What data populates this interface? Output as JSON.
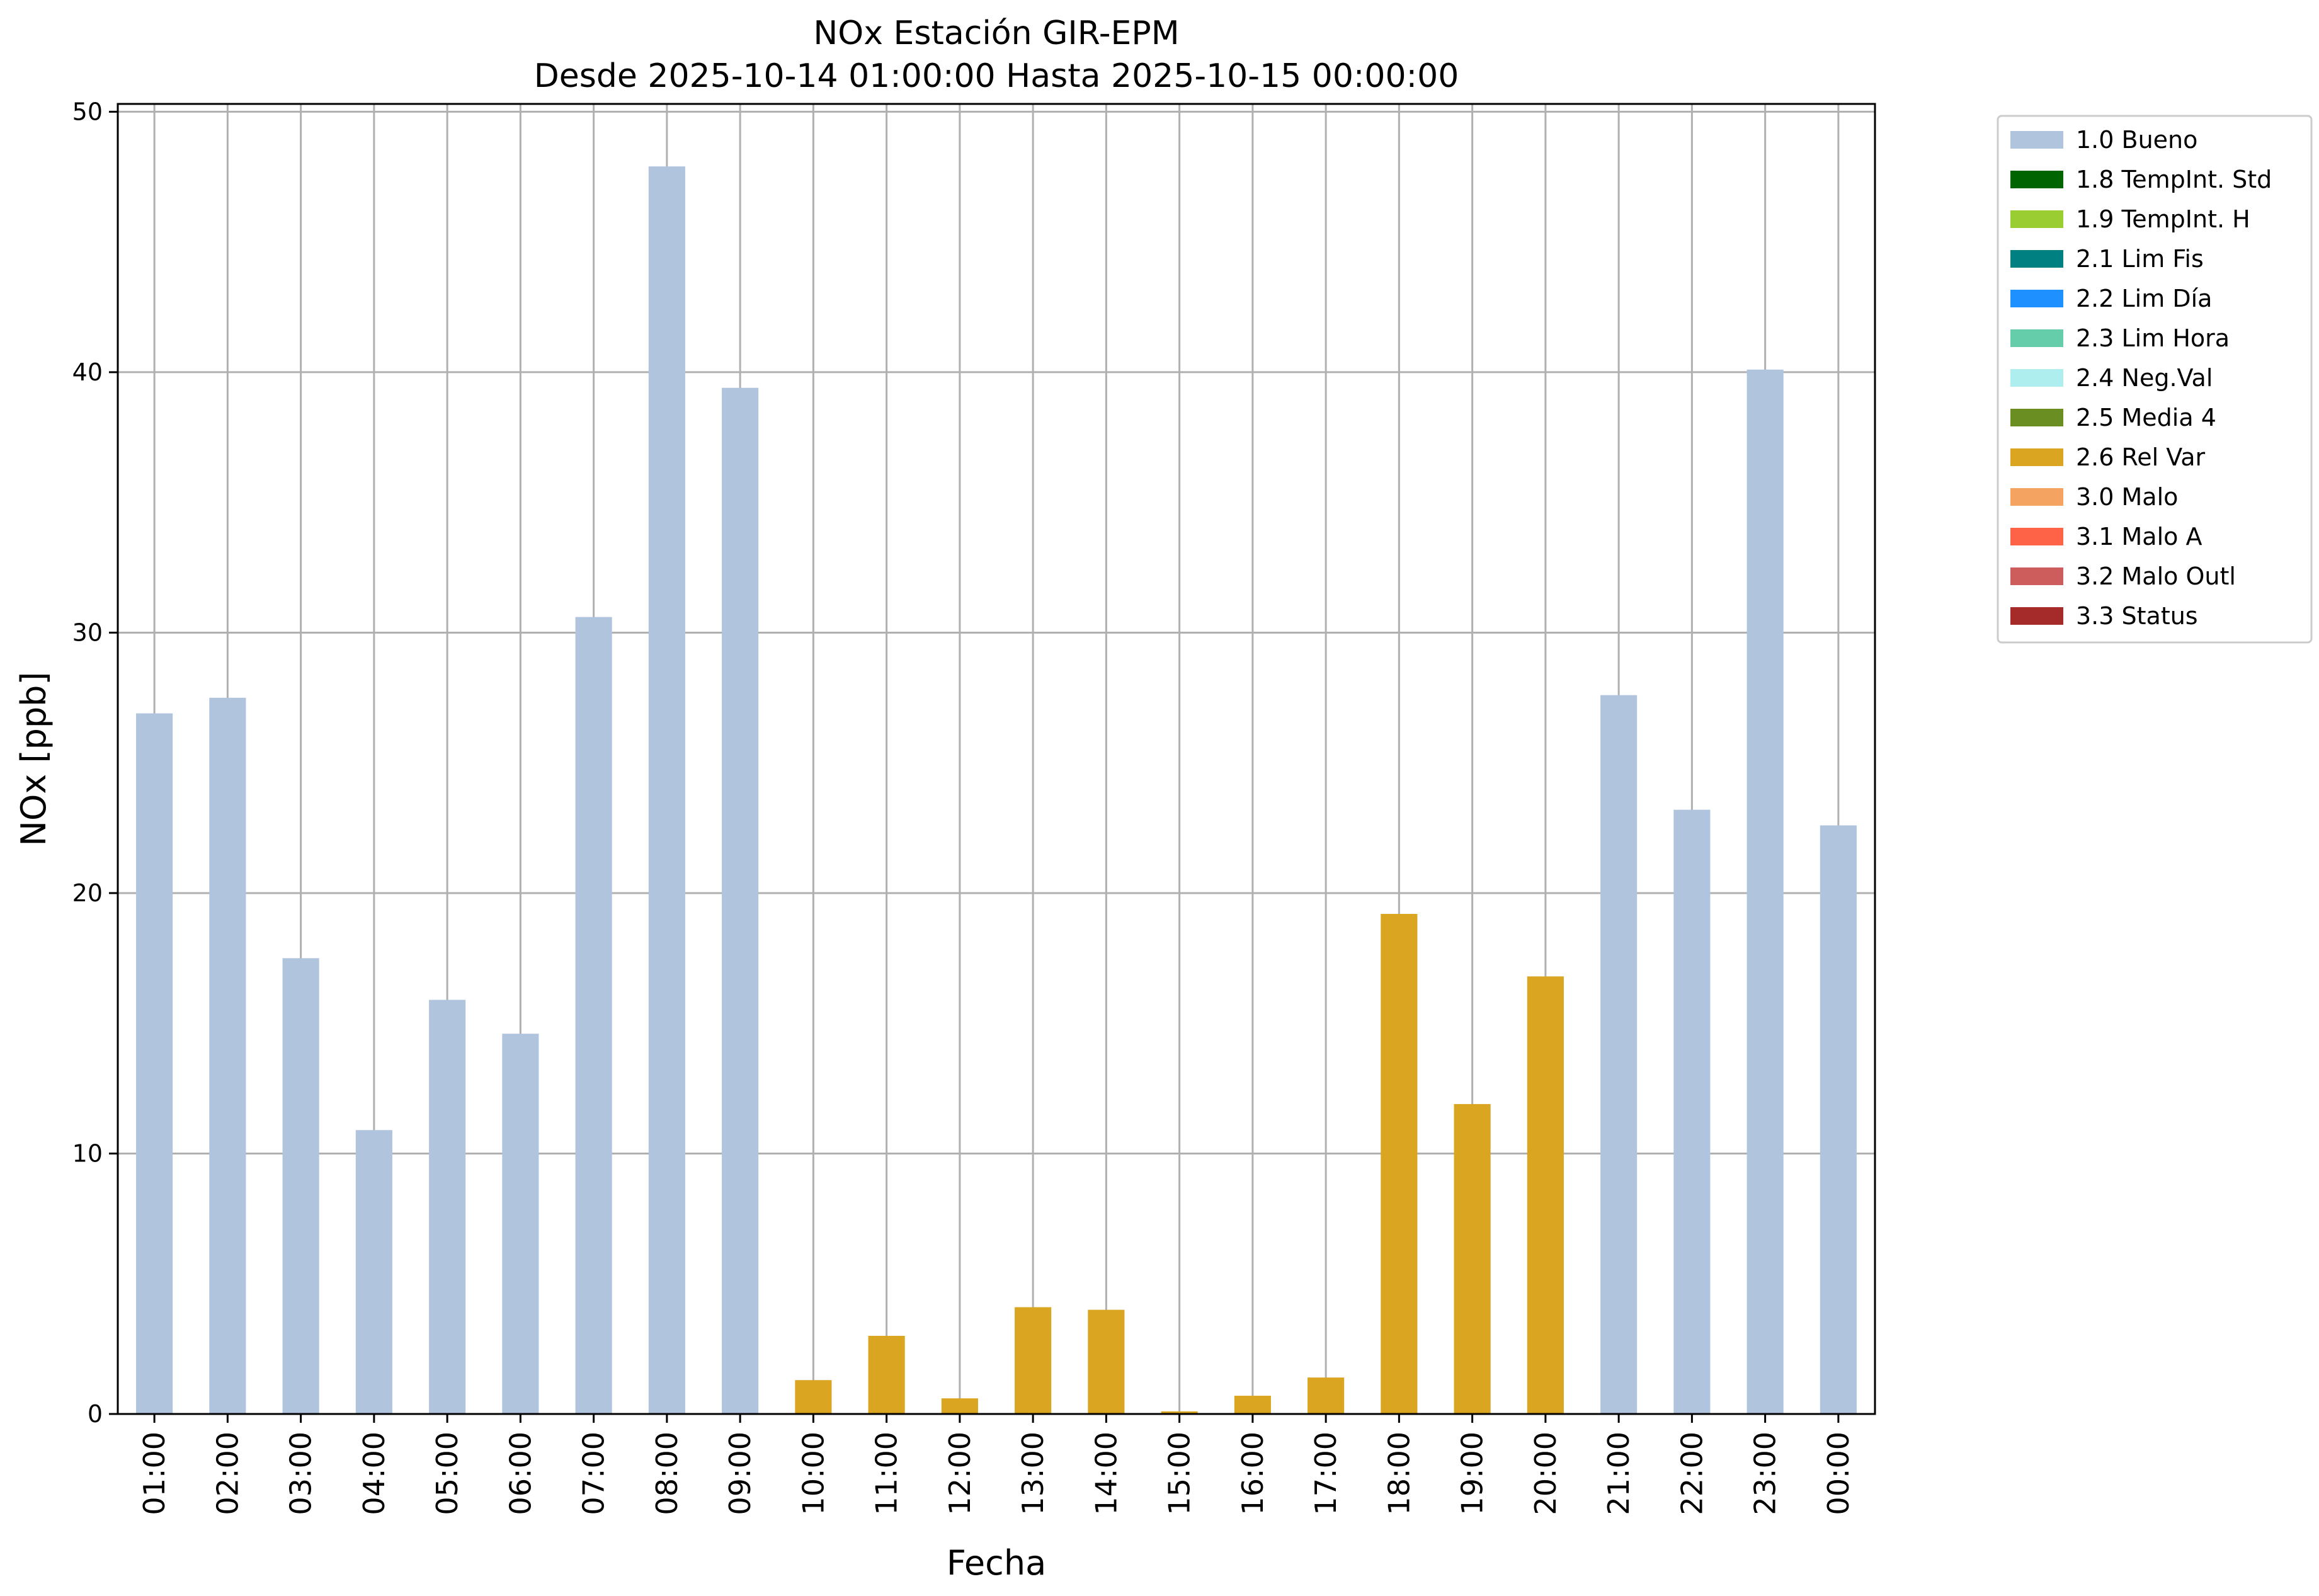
{
  "chart_data": {
    "type": "bar",
    "title": "NOx Estación GIR-EPM",
    "subtitle": "Desde 2025-10-14 01:00:00 Hasta 2025-10-15 00:00:00",
    "xlabel": "Fecha",
    "ylabel": "NOx [ppb]",
    "ylim": [
      0,
      50.3
    ],
    "yticks": [
      0,
      10,
      20,
      30,
      40,
      50
    ],
    "grid": true,
    "legend_position": "outside-right",
    "categories": [
      "01:00",
      "02:00",
      "03:00",
      "04:00",
      "05:00",
      "06:00",
      "07:00",
      "08:00",
      "09:00",
      "10:00",
      "11:00",
      "12:00",
      "13:00",
      "14:00",
      "15:00",
      "16:00",
      "17:00",
      "18:00",
      "19:00",
      "20:00",
      "21:00",
      "22:00",
      "23:00",
      "00:00"
    ],
    "values": [
      26.9,
      27.5,
      17.5,
      10.9,
      15.9,
      14.6,
      30.6,
      47.9,
      39.4,
      1.3,
      3.0,
      0.6,
      4.1,
      4.0,
      0.1,
      0.7,
      1.4,
      19.2,
      11.9,
      16.8,
      27.6,
      23.2,
      40.1,
      22.6
    ],
    "flags": [
      "1.0 Bueno",
      "1.0 Bueno",
      "1.0 Bueno",
      "1.0 Bueno",
      "1.0 Bueno",
      "1.0 Bueno",
      "1.0 Bueno",
      "1.0 Bueno",
      "1.0 Bueno",
      "2.6 Rel Var",
      "2.6 Rel Var",
      "2.6 Rel Var",
      "2.6 Rel Var",
      "2.6 Rel Var",
      "2.6 Rel Var",
      "2.6 Rel Var",
      "2.6 Rel Var",
      "2.6 Rel Var",
      "2.6 Rel Var",
      "2.6 Rel Var",
      "1.0 Bueno",
      "1.0 Bueno",
      "1.0 Bueno",
      "1.0 Bueno"
    ],
    "legend": [
      {
        "label": "1.0 Bueno",
        "color": "#b0c4de"
      },
      {
        "label": "1.8 TempInt. Std",
        "color": "#006400"
      },
      {
        "label": "1.9 TempInt. H",
        "color": "#9acd32"
      },
      {
        "label": "2.1 Lim Fis",
        "color": "#008080"
      },
      {
        "label": "2.2 Lim Día",
        "color": "#1e90ff"
      },
      {
        "label": "2.3 Lim Hora",
        "color": "#66cdaa"
      },
      {
        "label": "2.4 Neg.Val",
        "color": "#afeeee"
      },
      {
        "label": "2.5 Media 4",
        "color": "#6b8e23"
      },
      {
        "label": "2.6 Rel Var",
        "color": "#daa520"
      },
      {
        "label": "3.0 Malo",
        "color": "#f4a460"
      },
      {
        "label": "3.1 Malo A",
        "color": "#ff6347"
      },
      {
        "label": "3.2 Malo Outl",
        "color": "#cd5c5c"
      },
      {
        "label": "3.3 Status",
        "color": "#a52a2a"
      }
    ]
  }
}
